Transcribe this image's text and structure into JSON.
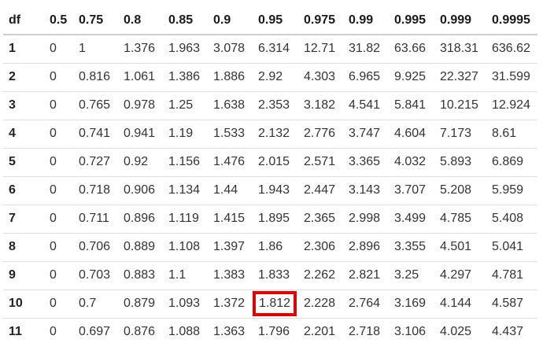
{
  "table": {
    "headers": [
      "df",
      "0.5",
      "0.75",
      "0.8",
      "0.85",
      "0.9",
      "0.95",
      "0.975",
      "0.99",
      "0.995",
      "0.999",
      "0.9995"
    ],
    "rows": [
      [
        "1",
        "0",
        "1",
        "1.376",
        "1.963",
        "3.078",
        "6.314",
        "12.71",
        "31.82",
        "63.66",
        "318.31",
        "636.62"
      ],
      [
        "2",
        "0",
        "0.816",
        "1.061",
        "1.386",
        "1.886",
        "2.92",
        "4.303",
        "6.965",
        "9.925",
        "22.327",
        "31.599"
      ],
      [
        "3",
        "0",
        "0.765",
        "0.978",
        "1.25",
        "1.638",
        "2.353",
        "3.182",
        "4.541",
        "5.841",
        "10.215",
        "12.924"
      ],
      [
        "4",
        "0",
        "0.741",
        "0.941",
        "1.19",
        "1.533",
        "2.132",
        "2.776",
        "3.747",
        "4.604",
        "7.173",
        "8.61"
      ],
      [
        "5",
        "0",
        "0.727",
        "0.92",
        "1.156",
        "1.476",
        "2.015",
        "2.571",
        "3.365",
        "4.032",
        "5.893",
        "6.869"
      ],
      [
        "6",
        "0",
        "0.718",
        "0.906",
        "1.134",
        "1.44",
        "1.943",
        "2.447",
        "3.143",
        "3.707",
        "5.208",
        "5.959"
      ],
      [
        "7",
        "0",
        "0.711",
        "0.896",
        "1.119",
        "1.415",
        "1.895",
        "2.365",
        "2.998",
        "3.499",
        "4.785",
        "5.408"
      ],
      [
        "8",
        "0",
        "0.706",
        "0.889",
        "1.108",
        "1.397",
        "1.86",
        "2.306",
        "2.896",
        "3.355",
        "4.501",
        "5.041"
      ],
      [
        "9",
        "0",
        "0.703",
        "0.883",
        "1.1",
        "1.383",
        "1.833",
        "2.262",
        "2.821",
        "3.25",
        "4.297",
        "4.781"
      ],
      [
        "10",
        "0",
        "0.7",
        "0.879",
        "1.093",
        "1.372",
        "1.812",
        "2.228",
        "2.764",
        "3.169",
        "4.144",
        "4.587"
      ],
      [
        "11",
        "0",
        "0.697",
        "0.876",
        "1.088",
        "1.363",
        "1.796",
        "2.201",
        "2.718",
        "3.106",
        "4.025",
        "4.437"
      ]
    ],
    "highlight": {
      "row": 9,
      "col": 6,
      "color": "#e00000"
    }
  }
}
